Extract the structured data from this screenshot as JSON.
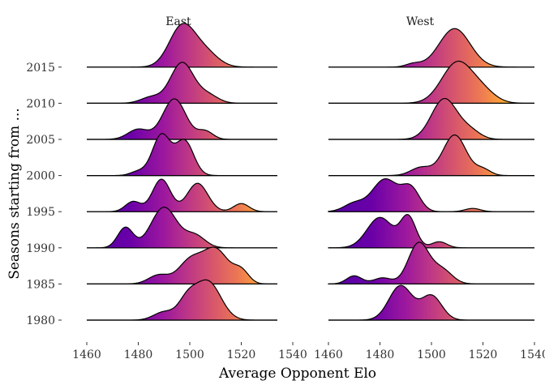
{
  "chart_data": {
    "type": "ridgeline",
    "xlabel": "Average Opponent Elo",
    "ylabel": "Seasons starting from ...",
    "xlim": [
      1460,
      1540
    ],
    "xticks": [
      1460,
      1480,
      1500,
      1520,
      1540
    ],
    "categories": [
      "1980",
      "1985",
      "1990",
      "1995",
      "2000",
      "2005",
      "2010",
      "2015"
    ],
    "fill_gradient": "plasma (purple at low Elo to yellow at high Elo)",
    "colors": {
      "low": "#6a00a8",
      "mid": "#b12a90",
      "high": "#e16462",
      "top": "#fca636"
    },
    "panels": [
      {
        "name": "East",
        "x_range": [
          1460,
          1534
        ],
        "ridges": [
          {
            "category": "1980",
            "peaks": [
              {
                "center": 1499,
                "height": 0.45,
                "width": 3.5
              },
              {
                "center": 1507,
                "height": 0.95,
                "width": 5
              },
              {
                "center": 1490,
                "height": 0.2,
                "width": 4
              }
            ]
          },
          {
            "category": "1985",
            "peaks": [
              {
                "center": 1488,
                "height": 0.22,
                "width": 4
              },
              {
                "center": 1500,
                "height": 0.55,
                "width": 4.5
              },
              {
                "center": 1510,
                "height": 0.85,
                "width": 5
              },
              {
                "center": 1520,
                "height": 0.3,
                "width": 3
              }
            ]
          },
          {
            "category": "1990",
            "peaks": [
              {
                "center": 1475,
                "height": 0.5,
                "width": 3
              },
              {
                "center": 1490,
                "height": 1.0,
                "width": 5
              },
              {
                "center": 1502,
                "height": 0.3,
                "width": 4
              }
            ]
          },
          {
            "category": "1995",
            "peaks": [
              {
                "center": 1478,
                "height": 0.25,
                "width": 3
              },
              {
                "center": 1489,
                "height": 0.8,
                "width": 3.5
              },
              {
                "center": 1503,
                "height": 0.7,
                "width": 4
              },
              {
                "center": 1520,
                "height": 0.2,
                "width": 3
              }
            ]
          },
          {
            "category": "2000",
            "peaks": [
              {
                "center": 1489,
                "height": 1.0,
                "width": 3.5
              },
              {
                "center": 1498,
                "height": 0.85,
                "width": 3.5
              },
              {
                "center": 1480,
                "height": 0.1,
                "width": 3
              }
            ]
          },
          {
            "category": "2005",
            "peaks": [
              {
                "center": 1480,
                "height": 0.25,
                "width": 4
              },
              {
                "center": 1494,
                "height": 1.0,
                "width": 4.5
              },
              {
                "center": 1506,
                "height": 0.2,
                "width": 3
              }
            ]
          },
          {
            "category": "2010",
            "peaks": [
              {
                "center": 1497,
                "height": 1.0,
                "width": 4.5
              },
              {
                "center": 1485,
                "height": 0.15,
                "width": 4
              },
              {
                "center": 1507,
                "height": 0.2,
                "width": 4
              }
            ]
          },
          {
            "category": "2015",
            "peaks": [
              {
                "center": 1497,
                "height": 1.0,
                "width": 5
              },
              {
                "center": 1506,
                "height": 0.35,
                "width": 5
              }
            ]
          }
        ]
      },
      {
        "name": "West",
        "x_range": [
          1460,
          1540
        ],
        "ridges": [
          {
            "category": "1980",
            "peaks": [
              {
                "center": 1488,
                "height": 0.85,
                "width": 4.5
              },
              {
                "center": 1500,
                "height": 0.6,
                "width": 4
              }
            ]
          },
          {
            "category": "1985",
            "peaks": [
              {
                "center": 1470,
                "height": 0.2,
                "width": 3
              },
              {
                "center": 1481,
                "height": 0.15,
                "width": 3.5
              },
              {
                "center": 1495,
                "height": 1.0,
                "width": 4
              },
              {
                "center": 1504,
                "height": 0.35,
                "width": 4
              }
            ]
          },
          {
            "category": "1990",
            "peaks": [
              {
                "center": 1480,
                "height": 0.75,
                "width": 5
              },
              {
                "center": 1491,
                "height": 0.75,
                "width": 3
              },
              {
                "center": 1503,
                "height": 0.15,
                "width": 3
              }
            ]
          },
          {
            "category": "1995",
            "peaks": [
              {
                "center": 1470,
                "height": 0.2,
                "width": 4
              },
              {
                "center": 1482,
                "height": 0.8,
                "width": 5
              },
              {
                "center": 1492,
                "height": 0.55,
                "width": 3.5
              },
              {
                "center": 1516,
                "height": 0.08,
                "width": 3
              }
            ]
          },
          {
            "category": "2000",
            "peaks": [
              {
                "center": 1496,
                "height": 0.2,
                "width": 4
              },
              {
                "center": 1509,
                "height": 1.0,
                "width": 4.5
              },
              {
                "center": 1520,
                "height": 0.15,
                "width": 3
              }
            ]
          },
          {
            "category": "2005",
            "peaks": [
              {
                "center": 1505,
                "height": 1.0,
                "width": 5
              },
              {
                "center": 1515,
                "height": 0.2,
                "width": 4
              }
            ]
          },
          {
            "category": "2010",
            "peaks": [
              {
                "center": 1510,
                "height": 1.0,
                "width": 6
              },
              {
                "center": 1520,
                "height": 0.25,
                "width": 5
              }
            ]
          },
          {
            "category": "2015",
            "peaks": [
              {
                "center": 1509,
                "height": 0.95,
                "width": 6
              },
              {
                "center": 1493,
                "height": 0.08,
                "width": 3
              }
            ]
          }
        ]
      }
    ]
  }
}
